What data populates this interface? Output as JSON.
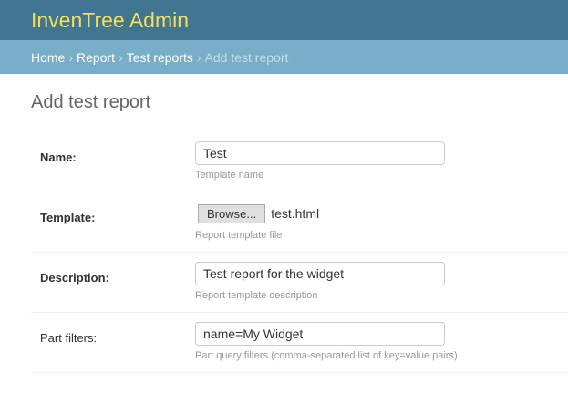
{
  "header": {
    "title": "InvenTree Admin"
  },
  "breadcrumbs": [
    {
      "label": "Home"
    },
    {
      "label": "Report"
    },
    {
      "label": "Test reports"
    },
    {
      "label": "Add test report"
    }
  ],
  "breadcrumb_separator": "›",
  "page": {
    "title": "Add test report"
  },
  "form": {
    "name": {
      "label": "Name:",
      "value": "Test",
      "help": "Template name"
    },
    "template": {
      "label": "Template:",
      "button": "Browse...",
      "filename": "test.html",
      "help": "Report template file"
    },
    "description": {
      "label": "Description:",
      "value": "Test report for the widget",
      "help": "Report template description"
    },
    "filters": {
      "label": "Part filters:",
      "value": "name=My Widget",
      "help": "Part query filters (comma-separated list of key=value pairs)"
    }
  }
}
